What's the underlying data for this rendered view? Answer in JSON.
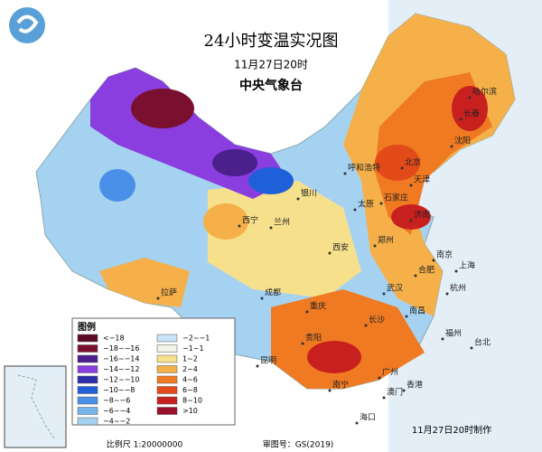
{
  "header": {
    "title": "24小时变温实况图",
    "time": "11月27日20时",
    "agency": "中央气象台"
  },
  "legend": {
    "title": "图例",
    "items": [
      {
        "label": "<−18",
        "color": "#5c0a25"
      },
      {
        "label": "−18~−16",
        "color": "#7a1030"
      },
      {
        "label": "−16~−14",
        "color": "#4b1f8c"
      },
      {
        "label": "−14~−12",
        "color": "#8a3ee0"
      },
      {
        "label": "−12~−10",
        "color": "#2c2fa8"
      },
      {
        "label": "−10~−8",
        "color": "#1f5fd8"
      },
      {
        "label": "−8~−6",
        "color": "#4a90e8"
      },
      {
        "label": "−6~−4",
        "color": "#78b4ec"
      },
      {
        "label": "−4~−2",
        "color": "#a6d2f2"
      },
      {
        "label": "−2~−1",
        "color": "#c8e4f6"
      },
      {
        "label": "−1~1",
        "color": "#f2f2e6"
      },
      {
        "label": "1~2",
        "color": "#f7e08c"
      },
      {
        "label": "2~4",
        "color": "#f5b04a"
      },
      {
        "label": "4~6",
        "color": "#ef7a22"
      },
      {
        "label": "6~8",
        "color": "#e34a1a"
      },
      {
        "label": "8~10",
        "color": "#c8201e"
      },
      {
        "label": ">10",
        "color": "#9a0f2a"
      }
    ]
  },
  "cities": [
    "北京",
    "天津",
    "石家庄",
    "太原",
    "呼和浩特",
    "沈阳",
    "长春",
    "哈尔滨",
    "济南",
    "郑州",
    "西安",
    "兰州",
    "西宁",
    "银川",
    "成都",
    "重庆",
    "贵阳",
    "昆明",
    "拉萨",
    "武汉",
    "合肥",
    "南京",
    "上海",
    "杭州",
    "南昌",
    "长沙",
    "福州",
    "广州",
    "南宁",
    "海口",
    "台北",
    "香港",
    "澳门"
  ],
  "footer": {
    "made": "11月27日20时制作",
    "scale": "比例尺 1:20000000",
    "review": "审图号：GS(2019)"
  }
}
